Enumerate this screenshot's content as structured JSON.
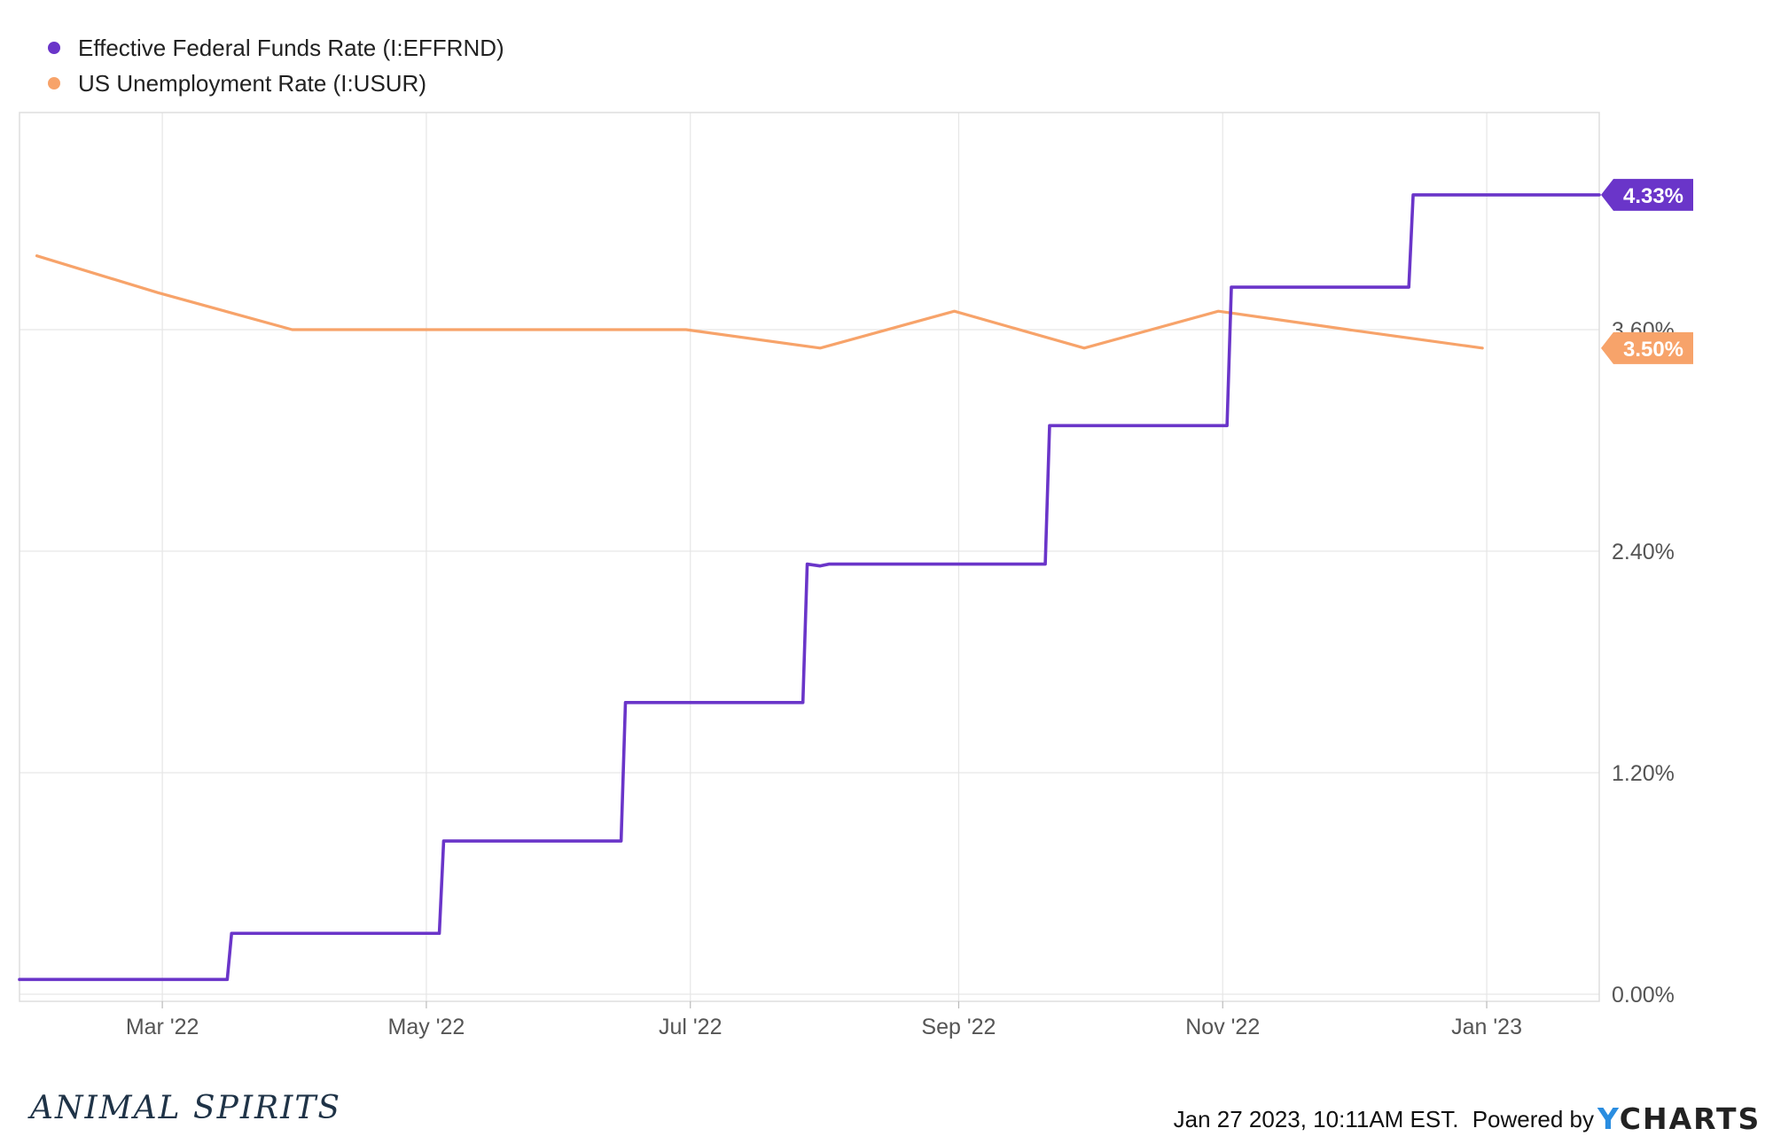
{
  "chart_data": {
    "type": "line",
    "x_axis": {
      "type": "date",
      "range": [
        "2022-01-27",
        "2023-01-27"
      ],
      "ticks": [
        {
          "date": "2022-03-01",
          "label": "Mar '22"
        },
        {
          "date": "2022-05-01",
          "label": "May '22"
        },
        {
          "date": "2022-07-01",
          "label": "Jul '22"
        },
        {
          "date": "2022-09-01",
          "label": "Sep '22"
        },
        {
          "date": "2022-11-01",
          "label": "Nov '22"
        },
        {
          "date": "2023-01-01",
          "label": "Jan '23"
        }
      ]
    },
    "y_axis": {
      "position": "right",
      "range": [
        0.0,
        4.8
      ],
      "ticks": [
        {
          "value": 0.0,
          "label": "0.00%"
        },
        {
          "value": 1.2,
          "label": "1.20%"
        },
        {
          "value": 2.4,
          "label": "2.40%"
        },
        {
          "value": 3.6,
          "label": "3.60%"
        }
      ]
    },
    "grid": true,
    "legend": "top-left",
    "series": [
      {
        "name": "Effective Federal Funds Rate (I:EFFRND)",
        "color": "#6a35c9",
        "step": true,
        "last_value_label": "4.33%",
        "points": [
          [
            "2022-01-27",
            0.08
          ],
          [
            "2022-03-16",
            0.08
          ],
          [
            "2022-03-17",
            0.33
          ],
          [
            "2022-05-04",
            0.33
          ],
          [
            "2022-05-05",
            0.83
          ],
          [
            "2022-06-15",
            0.83
          ],
          [
            "2022-06-16",
            1.58
          ],
          [
            "2022-07-27",
            1.58
          ],
          [
            "2022-07-28",
            2.33
          ],
          [
            "2022-07-31",
            2.32
          ],
          [
            "2022-08-02",
            2.33
          ],
          [
            "2022-09-21",
            2.33
          ],
          [
            "2022-09-22",
            3.08
          ],
          [
            "2022-11-02",
            3.08
          ],
          [
            "2022-11-03",
            3.83
          ],
          [
            "2022-12-14",
            3.83
          ],
          [
            "2022-12-15",
            4.33
          ],
          [
            "2023-01-27",
            4.33
          ]
        ]
      },
      {
        "name": "US Unemployment Rate (I:USUR)",
        "color": "#f7a36a",
        "step": false,
        "last_value_label": "3.50%",
        "points": [
          [
            "2022-01-31",
            4.0
          ],
          [
            "2022-02-28",
            3.8
          ],
          [
            "2022-03-31",
            3.6
          ],
          [
            "2022-04-30",
            3.6
          ],
          [
            "2022-05-31",
            3.6
          ],
          [
            "2022-06-30",
            3.6
          ],
          [
            "2022-07-31",
            3.5
          ],
          [
            "2022-08-31",
            3.7
          ],
          [
            "2022-09-30",
            3.5
          ],
          [
            "2022-10-31",
            3.7
          ],
          [
            "2022-11-30",
            3.6
          ],
          [
            "2022-12-31",
            3.5
          ]
        ]
      }
    ]
  },
  "footer": {
    "timestamp": "Jan 27 2023, 10:11AM EST.",
    "powered_by": "Powered by",
    "brand": "YCHARTS",
    "brand_accent_color": "#2a8de0",
    "watermark": "ANIMAL SPIRITS"
  }
}
